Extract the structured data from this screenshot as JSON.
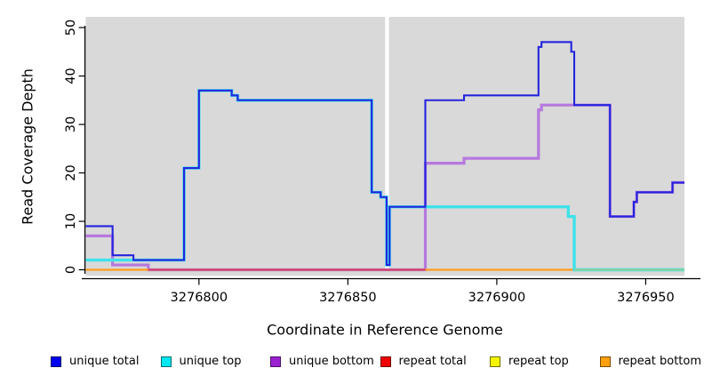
{
  "chart_data": {
    "type": "line",
    "subtype": "step-coverage",
    "title": "",
    "xlabel": "Coordinate in Reference Genome",
    "ylabel": "Read Coverage Depth",
    "xlim": [
      3276762,
      3276963
    ],
    "ylim": [
      0,
      50
    ],
    "x_ticks": [
      3276800,
      3276850,
      3276900,
      3276950
    ],
    "y_ticks": [
      0,
      10,
      20,
      30,
      40,
      50
    ],
    "grid": false,
    "plot_bg": "#d9d9d9",
    "gap_band": {
      "x1": 3276862.5,
      "x2": 3276863.8,
      "color": "#ffffff"
    },
    "series": [
      {
        "name": "unique bottom",
        "color": "#b678de",
        "width": 3.2,
        "steps": [
          [
            3276762,
            7
          ],
          [
            3276771,
            1
          ],
          [
            3276783,
            0
          ],
          [
            3276876,
            22
          ],
          [
            3276889,
            23
          ],
          [
            3276914,
            33
          ],
          [
            3276915,
            34
          ],
          [
            3276938,
            11
          ],
          [
            3276946,
            14
          ],
          [
            3276947,
            16
          ],
          [
            3276959,
            18
          ],
          [
            3276963,
            18
          ]
        ]
      },
      {
        "name": "repeat bottom",
        "color": "#ff9d1e",
        "width": 2.2,
        "steps": [
          [
            3276762,
            0
          ],
          [
            3276963,
            0
          ]
        ]
      },
      {
        "name": "repeat total",
        "color": "#d23c69",
        "width": 2,
        "steps": [
          [
            3276783,
            0
          ],
          [
            3276876,
            0
          ]
        ]
      },
      {
        "name": "unique top",
        "color": "#3fe2ea",
        "width": 3.4,
        "steps": [
          [
            3276762,
            2
          ],
          [
            3276795,
            21
          ],
          [
            3276800,
            37
          ],
          [
            3276811,
            36
          ],
          [
            3276813,
            35
          ],
          [
            3276858,
            16
          ],
          [
            3276861,
            15
          ],
          [
            3276863,
            1
          ],
          [
            3276864,
            13
          ],
          [
            3276924,
            11
          ],
          [
            3276926,
            0
          ],
          [
            3276963,
            0
          ]
        ]
      },
      {
        "name": "repeat top",
        "color": "#95cf90",
        "width": 2,
        "steps": [
          [
            3276926,
            0
          ],
          [
            3276963,
            0
          ]
        ]
      },
      {
        "name": "unique total",
        "color": "#2424dd",
        "width": 2.1,
        "steps": [
          [
            3276762,
            9
          ],
          [
            3276771,
            3
          ],
          [
            3276778,
            2
          ],
          [
            3276795,
            21
          ],
          [
            3276800,
            37
          ],
          [
            3276811,
            36
          ],
          [
            3276813,
            35
          ],
          [
            3276858,
            16
          ],
          [
            3276861,
            15
          ],
          [
            3276863,
            1
          ],
          [
            3276864,
            13
          ],
          [
            3276876,
            35
          ],
          [
            3276889,
            36
          ],
          [
            3276914,
            46
          ],
          [
            3276915,
            47
          ],
          [
            3276925,
            45
          ],
          [
            3276926,
            34
          ],
          [
            3276938,
            11
          ],
          [
            3276946,
            14
          ],
          [
            3276947,
            16
          ],
          [
            3276959,
            18
          ],
          [
            3276963,
            18
          ]
        ]
      }
    ],
    "legend_position": "bottom"
  },
  "legend": {
    "items": [
      {
        "label": "unique total",
        "fill": "#0000f0",
        "border": "#000066"
      },
      {
        "label": "unique top",
        "fill": "#00e8f0",
        "border": "#006b70"
      },
      {
        "label": "unique bottom",
        "fill": "#9a22d0",
        "border": "#4d0f68"
      },
      {
        "label": "repeat total",
        "fill": "#f00000",
        "border": "#700000"
      },
      {
        "label": "repeat top",
        "fill": "#f5f500",
        "border": "#6e6e00"
      },
      {
        "label": "repeat bottom",
        "fill": "#ffa010",
        "border": "#7a4d00"
      }
    ]
  }
}
